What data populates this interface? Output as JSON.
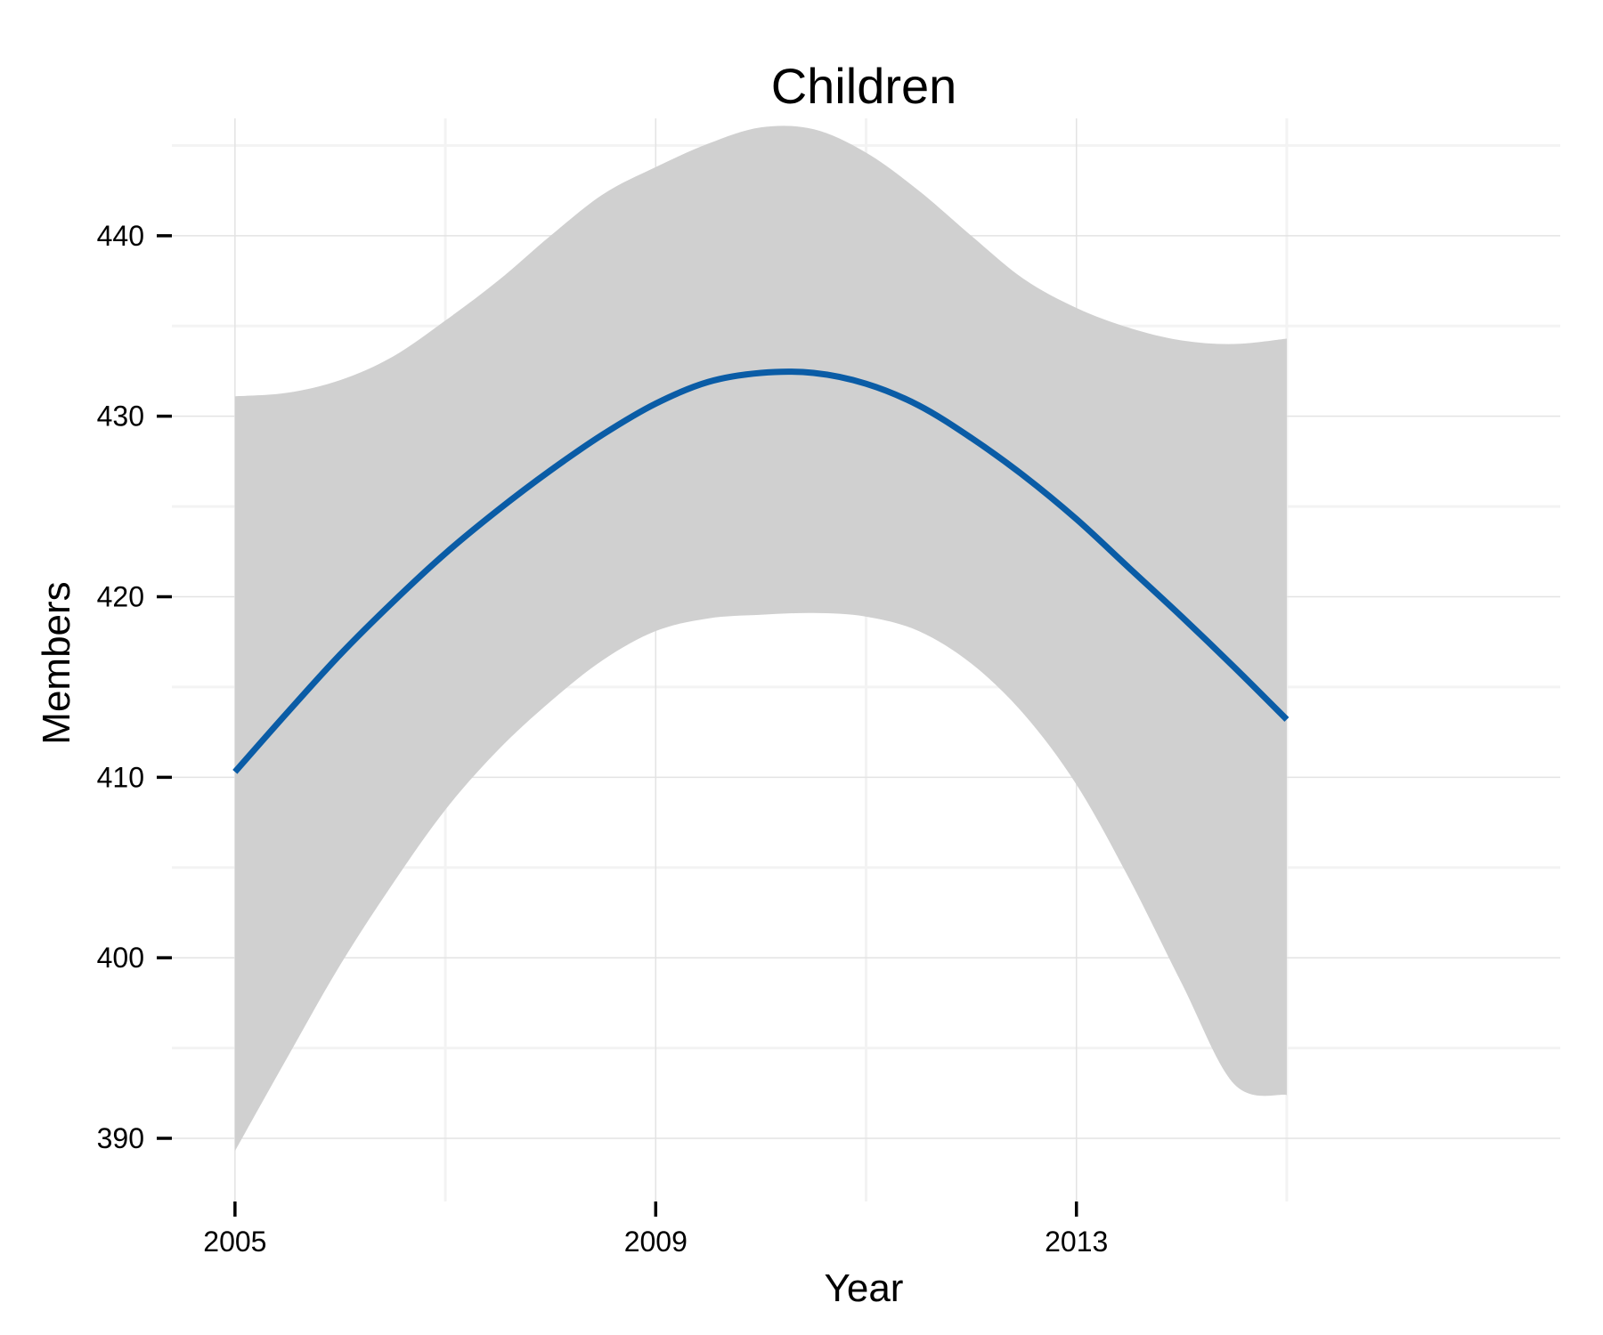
{
  "chart_data": {
    "type": "line",
    "title": "Children",
    "xlabel": "Year",
    "ylabel": "Members",
    "xlim": [
      2004.4,
      2017.6
    ],
    "ylim": [
      386.5,
      446.5
    ],
    "x_ticks": [
      2005,
      2009,
      2013
    ],
    "y_ticks": [
      390,
      400,
      410,
      420,
      430,
      440
    ],
    "x_ticks_labels": [
      "2005",
      "2009",
      "2013"
    ],
    "y_ticks_labels": [
      "390",
      "400",
      "410",
      "420",
      "430",
      "440"
    ],
    "grid": true,
    "legend": "none",
    "colors": {
      "line": "#0a5ca6",
      "band": "#d0d0d0",
      "grid_major": "#e3e3e3",
      "grid_minor": "#f3f3f3",
      "tick": "#000000"
    },
    "series": [
      {
        "type": "line",
        "x": [
          2005,
          2005.5,
          2006,
          2006.5,
          2007,
          2007.5,
          2008,
          2008.5,
          2009,
          2009.5,
          2010,
          2010.5,
          2011,
          2011.5,
          2012,
          2012.5,
          2013,
          2013.5,
          2014,
          2014.5,
          2015
        ],
        "y": [
          410.3,
          413.6,
          416.8,
          419.7,
          422.4,
          424.8,
          427.0,
          429.0,
          430.7,
          431.9,
          432.4,
          432.4,
          431.8,
          430.6,
          428.8,
          426.7,
          424.3,
          421.6,
          418.9,
          416.1,
          413.2
        ]
      },
      {
        "type": "band",
        "x": [
          2005,
          2005.5,
          2006,
          2006.5,
          2007,
          2007.5,
          2008,
          2008.5,
          2009,
          2009.5,
          2010,
          2010.5,
          2011,
          2011.5,
          2012,
          2012.5,
          2013,
          2013.5,
          2014,
          2014.5,
          2015
        ],
        "lower": [
          389.3,
          394.5,
          399.6,
          404.1,
          408.2,
          411.5,
          414.2,
          416.5,
          418.1,
          418.8,
          419.0,
          419.1,
          418.9,
          418.1,
          416.3,
          413.5,
          409.6,
          404.4,
          398.6,
          393.0,
          392.4
        ],
        "upper": [
          431.1,
          431.3,
          432.0,
          433.3,
          435.3,
          437.5,
          440.0,
          442.3,
          443.8,
          445.1,
          446.0,
          445.9,
          444.6,
          442.5,
          440.0,
          437.6,
          436.0,
          434.9,
          434.2,
          434.0,
          434.3
        ]
      }
    ]
  }
}
